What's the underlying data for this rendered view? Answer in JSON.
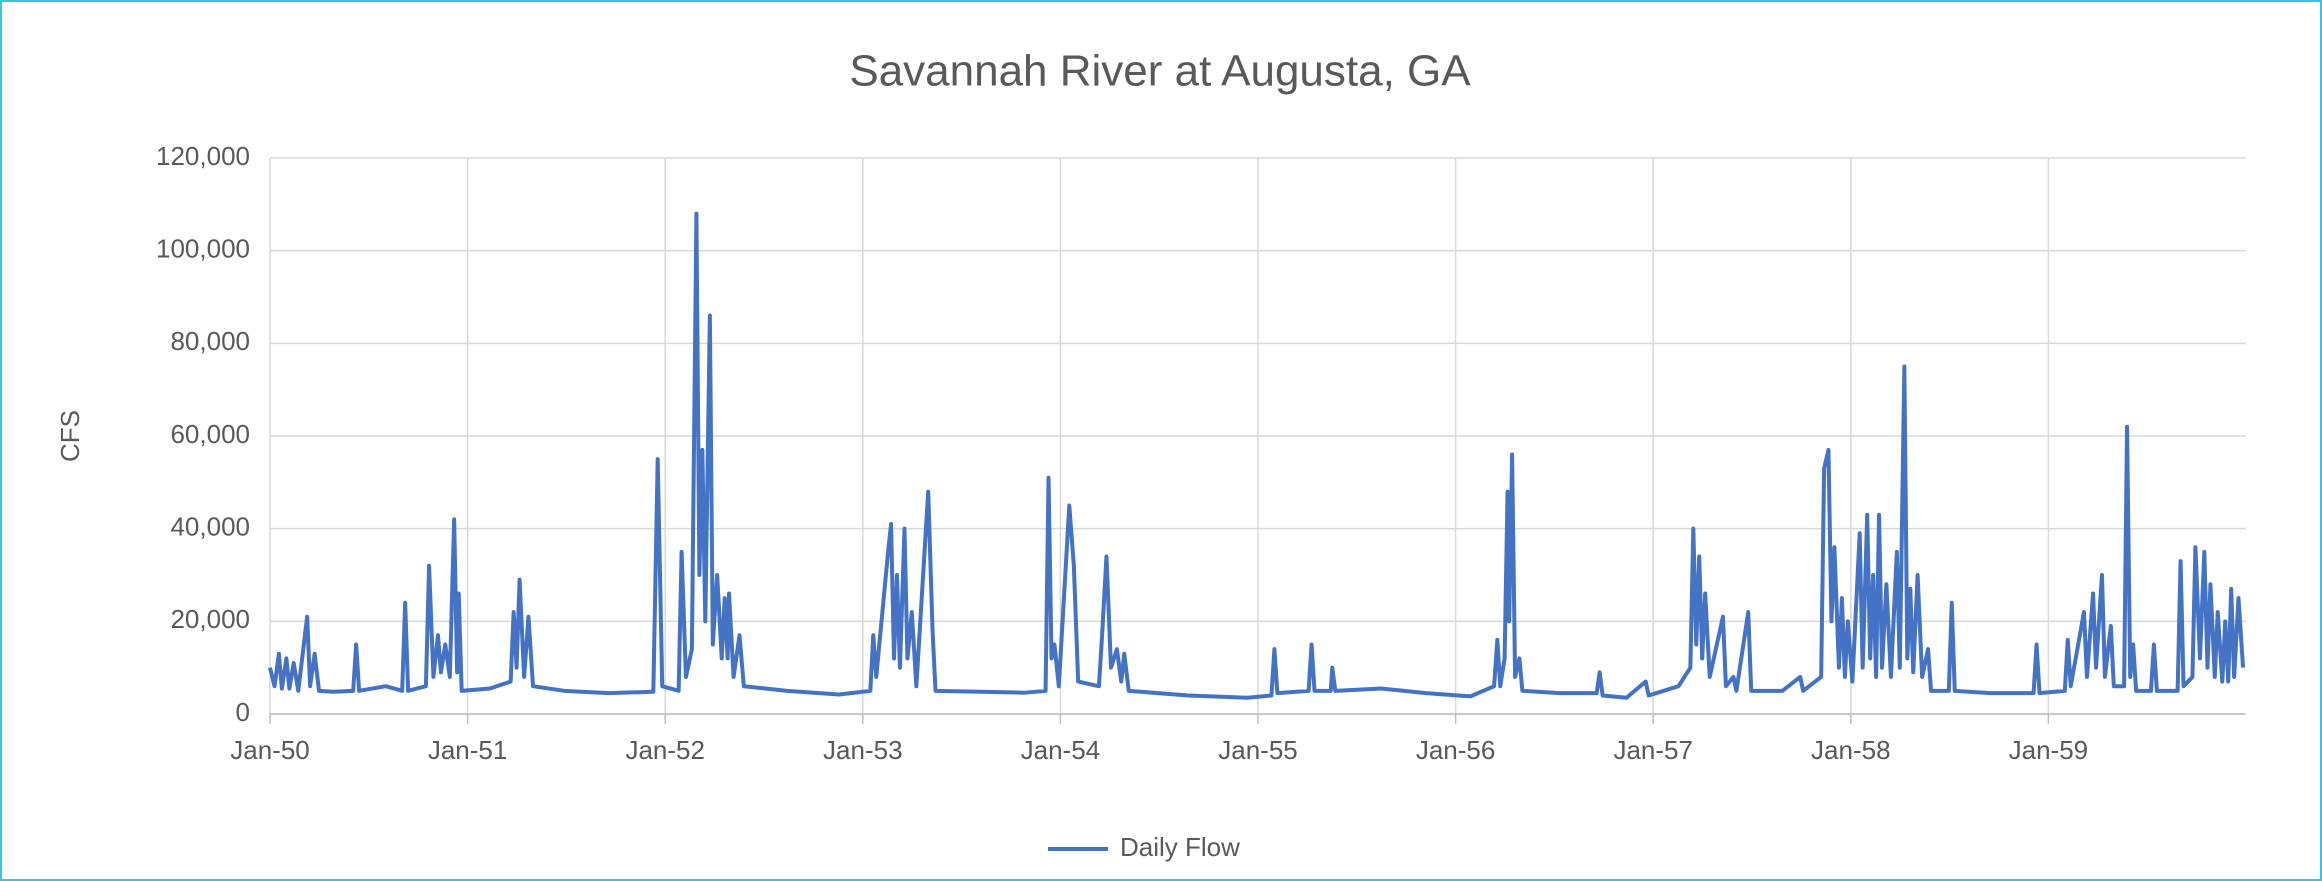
{
  "chart_data": {
    "type": "line",
    "title": "Savannah River at Augusta, GA",
    "y_label": "CFS",
    "xlim": [
      1950,
      1960
    ],
    "xticks": [
      {
        "value": 1950,
        "label": "Jan-50"
      },
      {
        "value": 1951,
        "label": "Jan-51"
      },
      {
        "value": 1952,
        "label": "Jan-52"
      },
      {
        "value": 1953,
        "label": "Jan-53"
      },
      {
        "value": 1954,
        "label": "Jan-54"
      },
      {
        "value": 1955,
        "label": "Jan-55"
      },
      {
        "value": 1956,
        "label": "Jan-56"
      },
      {
        "value": 1957,
        "label": "Jan-57"
      },
      {
        "value": 1958,
        "label": "Jan-58"
      },
      {
        "value": 1959,
        "label": "Jan-59"
      }
    ],
    "ylim": [
      0,
      120000
    ],
    "yticks": [
      0,
      {
        "value": 20000,
        "label": "20,000"
      },
      {
        "value": 40000,
        "label": "40,000"
      },
      {
        "value": 60000,
        "label": "60,000"
      },
      {
        "value": 80000,
        "label": "80,000"
      },
      {
        "value": 100000,
        "label": "100,000"
      },
      {
        "value": 120000,
        "label": "120,000"
      }
    ],
    "grid": true,
    "legend": "bottom",
    "x": [
      1950.0,
      1950.023,
      1950.045,
      1950.06,
      1950.083,
      1950.098,
      1950.12,
      1950.143,
      1950.188,
      1950.203,
      1950.226,
      1950.248,
      1950.323,
      1950.421,
      1950.436,
      1950.451,
      1950.586,
      1950.669,
      1950.684,
      1950.699,
      1950.789,
      1950.805,
      1950.827,
      1950.85,
      1950.865,
      1950.887,
      1950.91,
      1950.932,
      1950.947,
      1950.955,
      1950.97,
      1951.113,
      1951.218,
      1951.233,
      1951.248,
      1951.263,
      1951.286,
      1951.308,
      1951.331,
      1951.489,
      1951.714,
      1951.94,
      1951.962,
      1951.985,
      1952.068,
      1952.083,
      1952.105,
      1952.135,
      1952.158,
      1952.173,
      1952.188,
      1952.203,
      1952.226,
      1952.241,
      1952.263,
      1952.286,
      1952.301,
      1952.316,
      1952.323,
      1952.346,
      1952.376,
      1952.398,
      1952.617,
      1952.88,
      1953.038,
      1953.053,
      1953.068,
      1953.128,
      1953.143,
      1953.158,
      1953.173,
      1953.188,
      1953.211,
      1953.226,
      1953.248,
      1953.271,
      1953.331,
      1953.353,
      1953.368,
      1953.594,
      1953.82,
      1953.925,
      1953.94,
      1953.955,
      1953.97,
      1953.992,
      1954.045,
      1954.068,
      1954.09,
      1954.195,
      1954.211,
      1954.233,
      1954.256,
      1954.286,
      1954.308,
      1954.323,
      1954.346,
      1954.647,
      1954.947,
      1955.068,
      1955.083,
      1955.098,
      1955.256,
      1955.271,
      1955.286,
      1955.368,
      1955.376,
      1955.391,
      1955.624,
      1955.85,
      1956.075,
      1956.195,
      1956.211,
      1956.226,
      1956.248,
      1956.263,
      1956.271,
      1956.286,
      1956.301,
      1956.323,
      1956.338,
      1956.526,
      1956.714,
      1956.729,
      1956.744,
      1956.865,
      1956.962,
      1956.977,
      1957.128,
      1957.188,
      1957.203,
      1957.218,
      1957.233,
      1957.248,
      1957.263,
      1957.286,
      1957.353,
      1957.368,
      1957.406,
      1957.421,
      1957.481,
      1957.496,
      1957.654,
      1957.744,
      1957.759,
      1957.85,
      1957.865,
      1957.887,
      1957.902,
      1957.917,
      1957.94,
      1957.955,
      1957.97,
      1957.985,
      1958.008,
      1958.045,
      1958.06,
      1958.083,
      1958.098,
      1958.113,
      1958.128,
      1958.143,
      1958.158,
      1958.18,
      1958.203,
      1958.233,
      1958.248,
      1958.271,
      1958.286,
      1958.301,
      1958.316,
      1958.338,
      1958.361,
      1958.391,
      1958.406,
      1958.496,
      1958.511,
      1958.526,
      1958.707,
      1958.925,
      1958.94,
      1958.955,
      1959.083,
      1959.098,
      1959.113,
      1959.18,
      1959.195,
      1959.226,
      1959.241,
      1959.271,
      1959.286,
      1959.316,
      1959.331,
      1959.383,
      1959.398,
      1959.414,
      1959.429,
      1959.444,
      1959.519,
      1959.534,
      1959.549,
      1959.654,
      1959.669,
      1959.684,
      1959.729,
      1959.744,
      1959.767,
      1959.789,
      1959.805,
      1959.82,
      1959.842,
      1959.857,
      1959.88,
      1959.895,
      1959.91,
      1959.925,
      1959.94,
      1959.962,
      1959.985
    ],
    "series": [
      {
        "name": "Daily Flow",
        "color": "#4472c4",
        "values": [
          10000,
          6000,
          13000,
          5500,
          12000,
          5500,
          11000,
          5000,
          21000,
          6000,
          13000,
          5000,
          4800,
          5000,
          15000,
          5000,
          6000,
          5000,
          24000,
          5000,
          6000,
          32000,
          8000,
          17000,
          9000,
          15000,
          8000,
          42000,
          9000,
          26000,
          5000,
          5500,
          7000,
          22000,
          10000,
          29000,
          8000,
          21000,
          6000,
          5000,
          4500,
          4800,
          55000,
          6000,
          5000,
          35000,
          8000,
          14000,
          108000,
          30000,
          57000,
          20000,
          86000,
          15000,
          30000,
          12000,
          25000,
          12000,
          26000,
          8000,
          17000,
          6000,
          5000,
          4200,
          5000,
          17000,
          8000,
          35000,
          41000,
          12000,
          30000,
          10000,
          40000,
          12000,
          22000,
          6000,
          48000,
          18000,
          5000,
          4800,
          4600,
          5000,
          51000,
          12000,
          15000,
          6000,
          45000,
          32000,
          7000,
          6000,
          17000,
          34000,
          10000,
          14000,
          7000,
          13000,
          5000,
          4000,
          3500,
          4000,
          14000,
          4500,
          5000,
          15000,
          5000,
          5000,
          10000,
          5000,
          5500,
          4500,
          3800,
          6000,
          16000,
          6000,
          12000,
          48000,
          20000,
          56000,
          8000,
          12000,
          5000,
          4500,
          4500,
          9000,
          4000,
          3500,
          7000,
          4000,
          6000,
          10000,
          40000,
          15000,
          34000,
          12000,
          26000,
          8000,
          21000,
          6000,
          8000,
          5000,
          22000,
          5000,
          5000,
          8000,
          5000,
          8000,
          53000,
          57000,
          20000,
          36000,
          10000,
          25000,
          8000,
          20000,
          7000,
          39000,
          10000,
          43000,
          12000,
          30000,
          8000,
          43000,
          10000,
          28000,
          8000,
          35000,
          10000,
          75000,
          12000,
          27000,
          9000,
          30000,
          8000,
          14000,
          5000,
          5000,
          24000,
          5000,
          4500,
          4500,
          15000,
          4500,
          5000,
          16000,
          6000,
          22000,
          8000,
          26000,
          10000,
          30000,
          8000,
          19000,
          6000,
          6000,
          62000,
          8000,
          15000,
          5000,
          5000,
          15000,
          5000,
          5000,
          33000,
          6000,
          8000,
          36000,
          12000,
          35000,
          10000,
          28000,
          8000,
          22000,
          7000,
          20000,
          7000,
          27000,
          8000,
          25000,
          10000
        ]
      }
    ]
  }
}
